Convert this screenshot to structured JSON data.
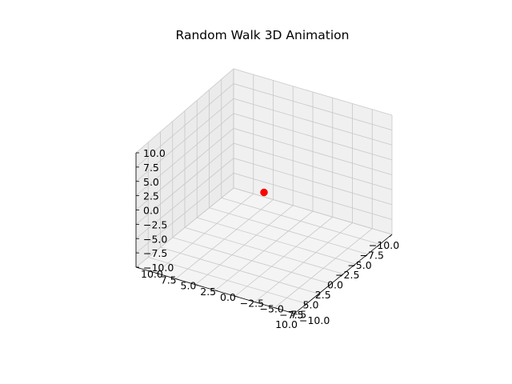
{
  "chart_data": {
    "type": "scatter",
    "projection": "3d",
    "title": "Random Walk 3D Animation",
    "xlabel": "",
    "ylabel": "",
    "zlabel": "",
    "xlim": [
      -10,
      10
    ],
    "ylim": [
      -10,
      10
    ],
    "zlim": [
      -10,
      10
    ],
    "ticks": [
      -10,
      -7.5,
      -5,
      -2.5,
      0,
      2.5,
      5,
      7.5,
      10
    ],
    "tick_labels": [
      "−10.0",
      "−7.5",
      "−5.0",
      "−2.5",
      "0.0",
      "2.5",
      "5.0",
      "7.5",
      "10.0"
    ],
    "grid": true,
    "points": [
      {
        "x": 0,
        "y": 0,
        "z": 0
      }
    ],
    "marker_color": "#ff0000",
    "pane_colors": {
      "left": "#f0f0f0",
      "back": "#ebebeb",
      "floor": "#f4f4f4"
    },
    "grid_color": "#c8c8c8"
  }
}
